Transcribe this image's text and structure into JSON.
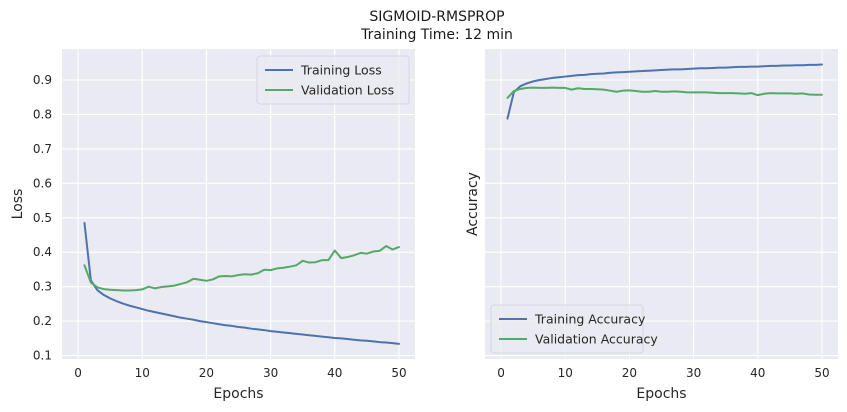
{
  "figure": {
    "title_line1": "SIGMOID-RMSPROP",
    "title_line2": "Training Time: 12 min"
  },
  "colors": {
    "background": "#eaeaf2",
    "grid": "#ffffff",
    "training": "#4c72b0",
    "validation": "#55a868"
  },
  "chart_data": [
    {
      "type": "line",
      "xlabel": "Epochs",
      "ylabel": "Loss",
      "xlim": [
        -2.5,
        52.5
      ],
      "ylim": [
        0.09,
        0.99
      ],
      "xticks": [
        0,
        10,
        20,
        30,
        40,
        50
      ],
      "yticks": [
        0.1,
        0.2,
        0.3,
        0.4,
        0.5,
        0.6,
        0.7,
        0.8,
        0.9
      ],
      "show_yticklabels": true,
      "grid": true,
      "legend_position": "upper right",
      "x": [
        1,
        2,
        3,
        4,
        5,
        6,
        7,
        8,
        9,
        10,
        11,
        12,
        13,
        14,
        15,
        16,
        17,
        18,
        19,
        20,
        21,
        22,
        23,
        24,
        25,
        26,
        27,
        28,
        29,
        30,
        31,
        32,
        33,
        34,
        35,
        36,
        37,
        38,
        39,
        40,
        41,
        42,
        43,
        44,
        45,
        46,
        47,
        48,
        49,
        50
      ],
      "series": [
        {
          "name": "Training Loss",
          "color": "#4c72b0",
          "values": [
            0.485,
            0.318,
            0.29,
            0.276,
            0.266,
            0.258,
            0.251,
            0.245,
            0.24,
            0.235,
            0.23,
            0.226,
            0.222,
            0.218,
            0.214,
            0.21,
            0.207,
            0.204,
            0.2,
            0.197,
            0.194,
            0.191,
            0.188,
            0.186,
            0.183,
            0.181,
            0.178,
            0.176,
            0.174,
            0.171,
            0.169,
            0.167,
            0.165,
            0.163,
            0.161,
            0.159,
            0.157,
            0.155,
            0.153,
            0.151,
            0.15,
            0.148,
            0.146,
            0.144,
            0.143,
            0.141,
            0.139,
            0.138,
            0.136,
            0.134
          ]
        },
        {
          "name": "Validation Loss",
          "color": "#55a868",
          "values": [
            0.362,
            0.312,
            0.298,
            0.293,
            0.291,
            0.29,
            0.289,
            0.289,
            0.29,
            0.292,
            0.3,
            0.295,
            0.299,
            0.301,
            0.303,
            0.308,
            0.313,
            0.323,
            0.32,
            0.317,
            0.321,
            0.33,
            0.331,
            0.33,
            0.334,
            0.336,
            0.335,
            0.339,
            0.349,
            0.348,
            0.353,
            0.355,
            0.358,
            0.362,
            0.375,
            0.37,
            0.371,
            0.377,
            0.377,
            0.405,
            0.383,
            0.386,
            0.391,
            0.398,
            0.396,
            0.402,
            0.404,
            0.418,
            0.408,
            0.415
          ]
        }
      ]
    },
    {
      "type": "line",
      "xlabel": "Epochs",
      "ylabel": "Accuracy",
      "xlim": [
        -2.5,
        52.5
      ],
      "ylim": [
        0.09,
        0.99
      ],
      "xticks": [
        0,
        10,
        20,
        30,
        40,
        50
      ],
      "yticks": [
        0.1,
        0.2,
        0.3,
        0.4,
        0.5,
        0.6,
        0.7,
        0.8,
        0.9
      ],
      "show_yticklabels": false,
      "grid": true,
      "legend_position": "lower left",
      "x": [
        1,
        2,
        3,
        4,
        5,
        6,
        7,
        8,
        9,
        10,
        11,
        12,
        13,
        14,
        15,
        16,
        17,
        18,
        19,
        20,
        21,
        22,
        23,
        24,
        25,
        26,
        27,
        28,
        29,
        30,
        31,
        32,
        33,
        34,
        35,
        36,
        37,
        38,
        39,
        40,
        41,
        42,
        43,
        44,
        45,
        46,
        47,
        48,
        49,
        50
      ],
      "series": [
        {
          "name": "Training Accuracy",
          "color": "#4c72b0",
          "values": [
            0.788,
            0.865,
            0.882,
            0.89,
            0.896,
            0.9,
            0.903,
            0.906,
            0.908,
            0.91,
            0.912,
            0.914,
            0.915,
            0.917,
            0.918,
            0.919,
            0.921,
            0.922,
            0.923,
            0.924,
            0.925,
            0.926,
            0.927,
            0.928,
            0.929,
            0.93,
            0.931,
            0.931,
            0.932,
            0.933,
            0.934,
            0.934,
            0.935,
            0.936,
            0.936,
            0.937,
            0.938,
            0.938,
            0.939,
            0.939,
            0.94,
            0.941,
            0.941,
            0.942,
            0.942,
            0.943,
            0.943,
            0.944,
            0.944,
            0.945
          ]
        },
        {
          "name": "Validation Accuracy",
          "color": "#55a868",
          "values": [
            0.848,
            0.868,
            0.874,
            0.877,
            0.878,
            0.877,
            0.877,
            0.878,
            0.877,
            0.877,
            0.872,
            0.876,
            0.874,
            0.874,
            0.873,
            0.872,
            0.869,
            0.866,
            0.869,
            0.87,
            0.868,
            0.866,
            0.866,
            0.868,
            0.866,
            0.866,
            0.867,
            0.866,
            0.864,
            0.864,
            0.864,
            0.864,
            0.863,
            0.862,
            0.862,
            0.862,
            0.861,
            0.86,
            0.862,
            0.856,
            0.86,
            0.862,
            0.861,
            0.861,
            0.861,
            0.86,
            0.861,
            0.858,
            0.857,
            0.857
          ]
        }
      ]
    }
  ]
}
